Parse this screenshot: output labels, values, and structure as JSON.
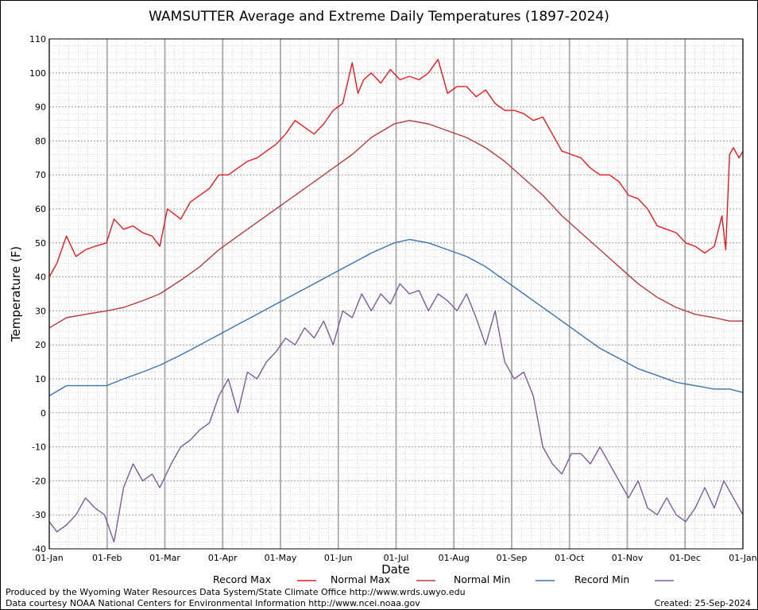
{
  "chart_data": {
    "type": "line",
    "title": "WAMSUTTER Average and Extreme Daily Temperatures (1897-2024)",
    "xlabel": "Date",
    "ylabel": "Temperature (F)",
    "ylim": [
      -40,
      110
    ],
    "yticks": [
      "110",
      "100",
      "90",
      "80",
      "70",
      "60",
      "50",
      "40",
      "30",
      "20",
      "10",
      "0",
      "-10",
      "-20",
      "-30",
      "-40"
    ],
    "xticks": [
      "01-Jan",
      "01-Feb",
      "01-Mar",
      "01-Apr",
      "01-May",
      "01-Jun",
      "01-Jul",
      "01-Aug",
      "01-Sep",
      "01-Oct",
      "01-Nov",
      "01-Dec",
      "01-Jan"
    ],
    "grid": true,
    "legend_position": "bottom",
    "series": [
      {
        "name": "Record Max",
        "color": "#e8191d",
        "x": [
          1,
          5,
          10,
          15,
          20,
          25,
          31,
          35,
          40,
          45,
          50,
          55,
          59,
          63,
          70,
          75,
          80,
          85,
          90,
          95,
          100,
          105,
          110,
          115,
          120,
          125,
          130,
          135,
          140,
          145,
          150,
          155,
          160,
          163,
          166,
          170,
          175,
          180,
          185,
          190,
          195,
          200,
          205,
          210,
          215,
          220,
          225,
          230,
          235,
          240,
          245,
          250,
          255,
          260,
          265,
          270,
          275,
          280,
          285,
          290,
          295,
          300,
          305,
          310,
          315,
          320,
          325,
          330,
          335,
          340,
          345,
          350,
          354,
          356,
          358,
          360,
          363,
          365
        ],
        "values": [
          40,
          44,
          52,
          46,
          48,
          49,
          50,
          57,
          54,
          55,
          53,
          52,
          49,
          60,
          57,
          62,
          64,
          66,
          70,
          70,
          72,
          74,
          75,
          77,
          79,
          82,
          86,
          84,
          82,
          85,
          89,
          91,
          103,
          94,
          98,
          100,
          97,
          101,
          98,
          99,
          98,
          100,
          104,
          94,
          96,
          96,
          93,
          95,
          91,
          89,
          89,
          88,
          86,
          87,
          82,
          77,
          76,
          75,
          72,
          70,
          70,
          68,
          64,
          63,
          60,
          55,
          54,
          53,
          50,
          49,
          47,
          49,
          58,
          48,
          76,
          78,
          75,
          77
        ]
      },
      {
        "name": "Normal Max",
        "color": "#b53b3b",
        "x": [
          1,
          10,
          20,
          31,
          40,
          50,
          59,
          70,
          80,
          90,
          100,
          110,
          120,
          130,
          140,
          150,
          160,
          170,
          182,
          190,
          200,
          210,
          220,
          230,
          240,
          250,
          260,
          270,
          280,
          290,
          300,
          310,
          320,
          330,
          340,
          350,
          358,
          365
        ],
        "values": [
          25,
          28,
          29,
          30,
          31,
          33,
          35,
          39,
          43,
          48,
          52,
          56,
          60,
          64,
          68,
          72,
          76,
          81,
          85,
          86,
          85,
          83,
          81,
          78,
          74,
          69,
          64,
          58,
          53,
          48,
          43,
          38,
          34,
          31,
          29,
          28,
          27,
          27
        ]
      },
      {
        "name": "Normal Min",
        "color": "#3a73b0",
        "x": [
          1,
          10,
          20,
          31,
          40,
          50,
          59,
          70,
          80,
          90,
          100,
          110,
          120,
          130,
          140,
          150,
          160,
          170,
          182,
          190,
          200,
          210,
          220,
          230,
          240,
          250,
          260,
          270,
          280,
          290,
          300,
          310,
          320,
          330,
          340,
          350,
          358,
          365
        ],
        "values": [
          5,
          8,
          8,
          8,
          10,
          12,
          14,
          17,
          20,
          23,
          26,
          29,
          32,
          35,
          38,
          41,
          44,
          47,
          50,
          51,
          50,
          48,
          46,
          43,
          39,
          35,
          31,
          27,
          23,
          19,
          16,
          13,
          11,
          9,
          8,
          7,
          7,
          6
        ]
      },
      {
        "name": "Record Min",
        "color": "#7b5aa0",
        "x": [
          1,
          5,
          10,
          15,
          20,
          25,
          30,
          35,
          40,
          45,
          50,
          55,
          59,
          65,
          70,
          75,
          80,
          85,
          90,
          95,
          100,
          105,
          110,
          115,
          120,
          125,
          130,
          135,
          140,
          145,
          150,
          155,
          160,
          165,
          170,
          175,
          180,
          185,
          190,
          195,
          200,
          205,
          210,
          215,
          220,
          225,
          230,
          235,
          240,
          245,
          250,
          255,
          260,
          265,
          270,
          275,
          280,
          285,
          290,
          295,
          300,
          305,
          310,
          315,
          320,
          325,
          330,
          335,
          340,
          345,
          350,
          355,
          360,
          365
        ],
        "values": [
          -32,
          -35,
          -33,
          -30,
          -25,
          -28,
          -30,
          -38,
          -22,
          -15,
          -20,
          -18,
          -22,
          -15,
          -10,
          -8,
          -5,
          -3,
          5,
          10,
          0,
          12,
          10,
          15,
          18,
          22,
          20,
          25,
          22,
          27,
          20,
          30,
          28,
          35,
          30,
          35,
          32,
          38,
          35,
          36,
          30,
          35,
          33,
          30,
          35,
          28,
          20,
          30,
          15,
          10,
          12,
          5,
          -10,
          -15,
          -18,
          -12,
          -12,
          -15,
          -10,
          -15,
          -20,
          -25,
          -20,
          -28,
          -30,
          -25,
          -30,
          -32,
          -28,
          -22,
          -28,
          -20,
          -25,
          -30
        ]
      }
    ]
  },
  "legend": {
    "record_max": "Record Max",
    "normal_max": "Normal Max",
    "normal_min": "Normal Min",
    "record_min": "Record Min"
  },
  "footer": {
    "line1": "Produced by the Wyoming Water Resources Data System/State Climate Office http://www.wrds.uwyo.edu",
    "line2": "Data courtesy NOAA National Centers for Environmental Information http://www.ncei.noaa.gov",
    "created": "Created:  25-Sep-2024"
  }
}
